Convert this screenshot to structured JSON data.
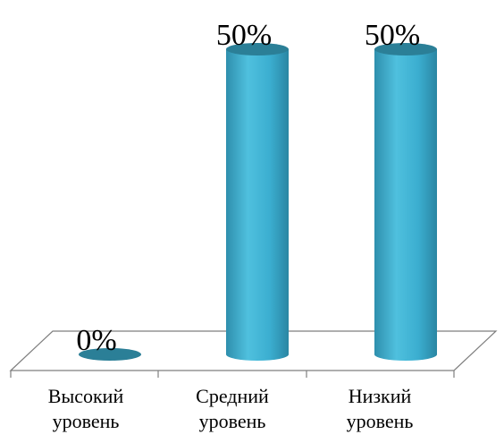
{
  "chart_data": {
    "type": "bar",
    "style": "3d-cylinder",
    "categories": [
      {
        "line1": "Высокий",
        "line2": "уровень"
      },
      {
        "line1": "Средний",
        "line2": "уровень"
      },
      {
        "line1": "Низкий",
        "line2": "уровень"
      }
    ],
    "values": [
      0,
      50,
      50
    ],
    "data_labels": [
      "0%",
      "50%",
      "50%"
    ],
    "ylim": [
      0,
      50
    ],
    "grid": false,
    "legend": "none",
    "colors": {
      "bar_side": "#3AA8C8",
      "bar_top": "#2B7F97",
      "floor_line": "#7F7F7F"
    }
  }
}
